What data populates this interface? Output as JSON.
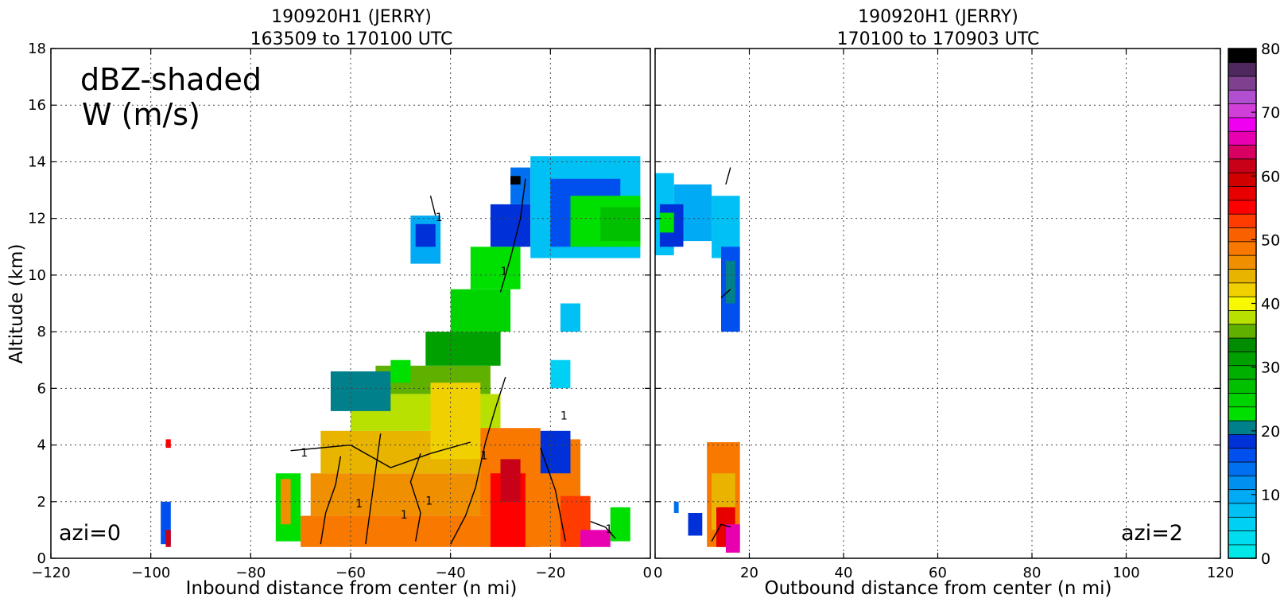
{
  "chart_data": [
    {
      "type": "heatmap",
      "panel": "left",
      "title_line1": "190920H1 (JERRY)",
      "title_line2": "163509 to 170100 UTC",
      "xlabel": "Inbound distance from center (n mi)",
      "ylabel": "Altitude (km)",
      "xlim": [
        -120,
        0
      ],
      "ylim": [
        0,
        18
      ],
      "xticks": [
        -120,
        -100,
        -80,
        -60,
        -40,
        -20,
        0
      ],
      "yticks": [
        0,
        2,
        4,
        6,
        8,
        10,
        12,
        14,
        16,
        18
      ],
      "grid": true,
      "annotation_main_line1": "dBZ-shaded",
      "annotation_main_line2": "W (m/s)",
      "annotation_corner": "azi=0",
      "contour_label": "1"
    },
    {
      "type": "heatmap",
      "panel": "right",
      "title_line1": "190920H1 (JERRY)",
      "title_line2": "170100 to 170903 UTC",
      "xlabel": "Outbound distance from center (n mi)",
      "xlim": [
        0,
        120
      ],
      "ylim": [
        0,
        18
      ],
      "xticks": [
        0,
        20,
        40,
        60,
        80,
        100,
        120
      ],
      "grid": true,
      "annotation_corner": "azi=2"
    }
  ],
  "colorbar": {
    "min": 0,
    "max": 80,
    "step": 2.5,
    "ticks": [
      0,
      10,
      20,
      30,
      40,
      50,
      60,
      70,
      80
    ],
    "colors": [
      "#00e8e8",
      "#00dcf0",
      "#00d0f4",
      "#00c0f4",
      "#00aaf4",
      "#0090f0",
      "#0070f0",
      "#0050f0",
      "#0030d8",
      "#00808a",
      "#00e000",
      "#00d400",
      "#00c000",
      "#00b000",
      "#00a000",
      "#008c00",
      "#60b000",
      "#b8e000",
      "#f8f800",
      "#f0d000",
      "#e8b400",
      "#f09000",
      "#f87800",
      "#f86000",
      "#ff3c00",
      "#ff0000",
      "#e80000",
      "#d00000",
      "#c80018",
      "#d80060",
      "#e800b0",
      "#f000f0",
      "#d040d8",
      "#b050d0",
      "#804090",
      "#502860",
      "#000000"
    ]
  },
  "dbz_cells": {
    "left": [
      [
        -70,
        -22,
        0.4,
        1.5,
        22
      ],
      [
        -68,
        -24,
        1.5,
        3,
        21
      ],
      [
        -66,
        -26,
        3,
        4.5,
        20
      ],
      [
        -60,
        -30,
        4.5,
        5.8,
        17
      ],
      [
        -55,
        -32,
        5.8,
        6.8,
        16
      ],
      [
        -45,
        -30,
        6.8,
        8,
        14
      ],
      [
        -40,
        -28,
        8,
        9.5,
        11
      ],
      [
        -36,
        -26,
        9.5,
        11,
        10
      ],
      [
        -32,
        -24,
        11,
        12.5,
        8
      ],
      [
        -28,
        -24,
        12.5,
        13.8,
        6
      ],
      [
        -24,
        -2,
        10.6,
        14.2,
        3
      ],
      [
        -20,
        -6,
        11,
        13.4,
        7
      ],
      [
        -16,
        -2,
        11,
        12.8,
        10
      ],
      [
        -10,
        -2,
        11.2,
        12.4,
        12
      ],
      [
        -48,
        -42,
        10.4,
        12.1,
        4
      ],
      [
        -47,
        -43,
        11,
        11.8,
        8
      ],
      [
        -64,
        -52,
        5.2,
        6.6,
        9
      ],
      [
        -44,
        -34,
        3.5,
        6.2,
        19
      ],
      [
        -34,
        -22,
        1.5,
        4.6,
        22
      ],
      [
        -32,
        -24,
        0.4,
        3,
        25
      ],
      [
        -30,
        -26,
        2,
        3.5,
        28
      ],
      [
        -25,
        -14,
        0.4,
        4.2,
        22
      ],
      [
        -22,
        -16,
        3,
        4.5,
        8
      ],
      [
        -18,
        -12,
        0.4,
        2.2,
        24
      ],
      [
        -14,
        -8,
        0.4,
        1,
        30
      ],
      [
        -75,
        -70,
        0.6,
        3,
        10
      ],
      [
        -74,
        -72,
        1.2,
        2.8,
        21
      ],
      [
        -98,
        -96,
        0.5,
        2,
        7
      ],
      [
        -97,
        -96,
        0.4,
        1,
        28
      ],
      [
        -97,
        -96,
        3.9,
        4.2,
        25
      ],
      [
        -8,
        -4,
        0.6,
        1.8,
        10
      ],
      [
        -20,
        -16,
        6,
        7,
        2
      ],
      [
        -18,
        -14,
        8,
        9,
        3
      ],
      [
        -52,
        -48,
        6.2,
        7,
        10
      ],
      [
        -28,
        -26,
        13.2,
        13.5,
        36
      ]
    ],
    "right": [
      [
        0,
        4,
        10.7,
        13.6,
        3
      ],
      [
        4,
        12,
        11.2,
        13.2,
        4
      ],
      [
        12,
        18,
        10.6,
        12.8,
        3
      ],
      [
        1,
        6,
        11,
        12.5,
        8
      ],
      [
        1,
        4,
        11.5,
        12.2,
        10
      ],
      [
        14,
        18,
        8,
        11,
        7
      ],
      [
        15,
        17,
        9,
        10.5,
        9
      ],
      [
        11,
        18,
        0.4,
        4.1,
        22
      ],
      [
        12,
        17,
        1,
        3,
        20
      ],
      [
        13,
        17,
        0.4,
        1.8,
        26
      ],
      [
        15,
        18,
        0.2,
        1.2,
        30
      ],
      [
        7,
        10,
        0.8,
        1.6,
        8
      ],
      [
        4,
        5,
        1.6,
        2,
        6
      ]
    ]
  }
}
